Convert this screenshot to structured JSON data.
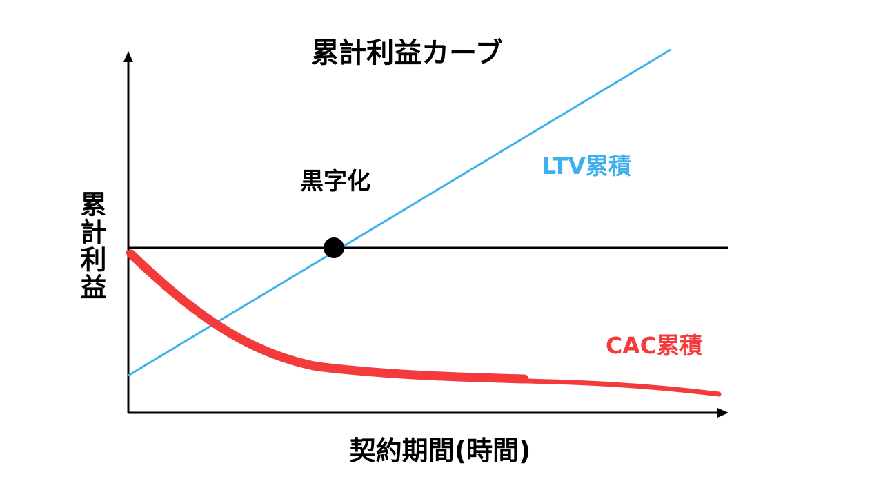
{
  "title": "累計利益カーブ",
  "x_axis_label": "契約期間(時間)",
  "y_axis_label": "累計利益",
  "breakeven_label": "黒字化",
  "ltv_label": "LTV累積",
  "cac_label": "CAC累積",
  "colors": {
    "ltv": "#3fb0ee",
    "cac": "#f43b3b",
    "axis": "#000000",
    "breakeven_point": "#000000"
  }
}
